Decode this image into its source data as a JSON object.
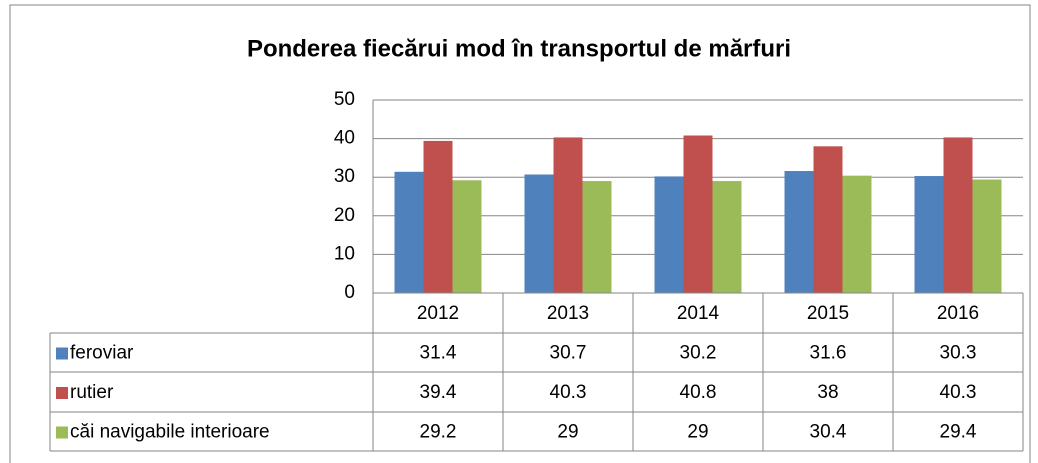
{
  "chart_data": {
    "type": "bar",
    "title": "Ponderea fiecărui mod în transportul de mărfuri",
    "categories": [
      "2012",
      "2013",
      "2014",
      "2015",
      "2016"
    ],
    "series": [
      {
        "name": "feroviar",
        "color": "#4f81bd",
        "values": [
          31.4,
          30.7,
          30.2,
          31.6,
          30.3
        ]
      },
      {
        "name": "rutier",
        "color": "#c0504d",
        "values": [
          39.4,
          40.3,
          40.8,
          38,
          40.3
        ]
      },
      {
        "name": "căi navigabile interioare",
        "color": "#9bbb59",
        "values": [
          29.2,
          29,
          29,
          30.4,
          29.4
        ]
      }
    ],
    "ylim": [
      0,
      50
    ],
    "yticks": [
      0,
      10,
      20,
      30,
      40,
      50
    ],
    "grid": true,
    "data_table": true
  }
}
